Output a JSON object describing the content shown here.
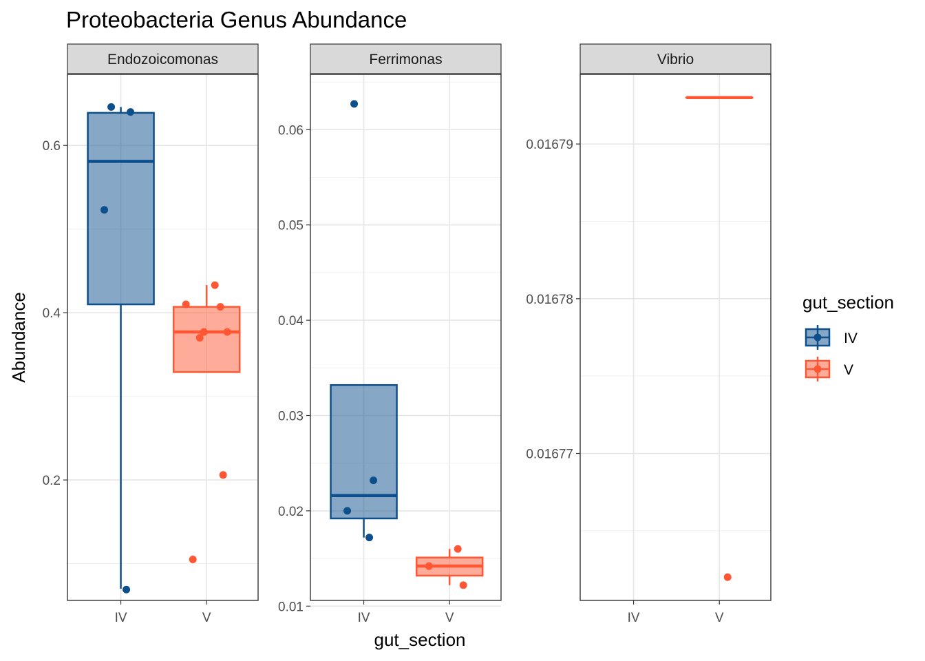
{
  "title": "Proteobacteria Genus Abundance",
  "chart_data": {
    "type": "box",
    "title": "Proteobacteria Genus Abundance",
    "xlabel": "gut_section",
    "ylabel": "Abundance",
    "categories": [
      "IV",
      "V"
    ],
    "colors": {
      "IV": "#0D4F8B",
      "V": "#FF5733"
    },
    "legend": {
      "title": "gut_section",
      "position": "right",
      "entries": [
        "IV",
        "V"
      ]
    },
    "grid": true,
    "facets": [
      {
        "name": "Endozoicomonas",
        "ylim": [
          0.056,
          0.685
        ],
        "yticks": [
          0.2,
          0.4,
          0.6
        ],
        "yticklabels": [
          "0.2",
          "0.4",
          "0.6"
        ],
        "boxes": {
          "IV": {
            "q1": 0.41,
            "median": 0.581,
            "q3": 0.639,
            "whisker_low": 0.07,
            "whisker_high": 0.646
          },
          "V": {
            "q1": 0.329,
            "median": 0.377,
            "q3": 0.407,
            "whisker_low": 0.329,
            "whisker_high": 0.433
          }
        },
        "points": {
          "IV": [
            0.646,
            0.64,
            0.523,
            0.069
          ],
          "V": [
            0.433,
            0.41,
            0.407,
            0.377,
            0.377,
            0.37,
            0.206,
            0.105
          ]
        }
      },
      {
        "name": "Ferrimonas",
        "ylim": [
          0.0106,
          0.0658
        ],
        "yticks": [
          0.01,
          0.02,
          0.03,
          0.04,
          0.05,
          0.06
        ],
        "yticklabels": [
          "0.01",
          "0.02",
          "0.03",
          "0.04",
          "0.05",
          "0.06"
        ],
        "boxes": {
          "IV": {
            "q1": 0.0192,
            "median": 0.0216,
            "q3": 0.0332,
            "whisker_low": 0.0172,
            "whisker_high": 0.0332
          },
          "V": {
            "q1": 0.0132,
            "median": 0.0142,
            "q3": 0.0151,
            "whisker_low": 0.0122,
            "whisker_high": 0.016
          }
        },
        "points": {
          "IV": [
            0.0627,
            0.0232,
            0.02,
            0.0172
          ],
          "V": [
            0.016,
            0.0142,
            0.0122
          ]
        }
      },
      {
        "name": "Vibrio",
        "ylim": [
          0.0167605,
          0.0167945
        ],
        "yticks": [
          0.01677,
          0.01678,
          0.01679
        ],
        "yticklabels": [
          "0.01677",
          "0.01678",
          "0.01679"
        ],
        "boxes": {
          "IV": null,
          "V": {
            "q1": 0.016793,
            "median": 0.016793,
            "q3": 0.016793,
            "whisker_low": 0.016793,
            "whisker_high": 0.016793
          }
        },
        "points": {
          "IV": [],
          "V": [
            0.016762
          ]
        }
      }
    ]
  }
}
